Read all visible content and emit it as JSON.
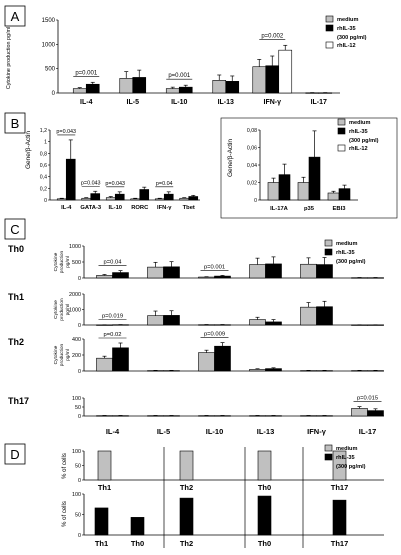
{
  "figure": {
    "panel_labels": [
      "A",
      "B",
      "C",
      "D"
    ],
    "colors": {
      "medium": "#c0c0c0",
      "il35": "#000000",
      "il12": "#ffffff"
    }
  },
  "chart_data": [
    {
      "panel": "A",
      "type": "bar",
      "ylabel": "Cytokine production pg/ml",
      "ylim": [
        0,
        1500
      ],
      "yticks": [
        0,
        500,
        1000,
        1500
      ],
      "categories": [
        "IL-4",
        "IL-5",
        "IL-10",
        "IL-13",
        "IFN-γ",
        "IL-17"
      ],
      "series": [
        {
          "name": "medium",
          "values": [
            90,
            300,
            90,
            260,
            540,
            5
          ],
          "errors": [
            20,
            140,
            30,
            110,
            150,
            3
          ]
        },
        {
          "name": "rhIL-35 (300 pg/ml)",
          "values": [
            180,
            320,
            120,
            240,
            560,
            5
          ],
          "errors": [
            40,
            150,
            40,
            110,
            200,
            3
          ]
        },
        {
          "name": "rhIL-12",
          "values": [
            null,
            null,
            null,
            null,
            880,
            null
          ],
          "errors": [
            null,
            null,
            null,
            null,
            100,
            null
          ]
        }
      ],
      "annotations": [
        {
          "text": "p=0.001",
          "category": "IL-4"
        },
        {
          "text": "p=0.001",
          "category": "IL-10"
        },
        {
          "text": "p=0.002",
          "category": "IFN-γ"
        }
      ],
      "legend": [
        "medium",
        "rhIL-35",
        "(300 pg/ml)",
        "rhIL-12"
      ]
    },
    {
      "panel": "B-left",
      "type": "bar",
      "ylabel": "Gene/β-Actin",
      "ylim": [
        0,
        1.2
      ],
      "yticks": [
        0,
        0.2,
        0.4,
        0.6,
        0.8,
        1,
        1.2
      ],
      "ytick_labels": [
        "0",
        "0,2",
        "0,4",
        "0,6",
        "0,8",
        "1",
        "1,2"
      ],
      "categories": [
        "IL-4",
        "GATA-3",
        "IL-10",
        "RORC",
        "IFN-γ",
        "Tbet"
      ],
      "series": [
        {
          "name": "medium",
          "values": [
            0.02,
            0.03,
            0.04,
            0.02,
            0.02,
            0.03
          ],
          "errors": [
            0.01,
            0.01,
            0.02,
            0.01,
            0.01,
            0.01
          ]
        },
        {
          "name": "rhIL-35",
          "values": [
            0.7,
            0.11,
            0.1,
            0.18,
            0.1,
            0.06
          ],
          "errors": [
            0.33,
            0.04,
            0.04,
            0.04,
            0.04,
            0.02
          ]
        }
      ],
      "annotations": [
        {
          "text": "p=0.043",
          "category": "IL-4"
        },
        {
          "text": "p=0.043",
          "category": "GATA-3"
        },
        {
          "text": "p=0.043",
          "category": "IL-10"
        },
        {
          "text": "p=0.04",
          "category": "IFN-γ"
        }
      ]
    },
    {
      "panel": "B-right",
      "type": "bar",
      "ylabel": "Gene/β-Actin",
      "ylim": [
        0,
        0.08
      ],
      "yticks": [
        0,
        0.02,
        0.04,
        0.06,
        0.08
      ],
      "ytick_labels": [
        "0",
        "0,02",
        "0,04",
        "0,06",
        "0,08"
      ],
      "categories": [
        "IL-17A",
        "p35",
        "EBI3"
      ],
      "series": [
        {
          "name": "medium",
          "values": [
            0.02,
            0.02,
            0.008
          ],
          "errors": [
            0.005,
            0.006,
            0.002
          ]
        },
        {
          "name": "rhIL-35",
          "values": [
            0.029,
            0.049,
            0.013
          ],
          "errors": [
            0.012,
            0.03,
            0.004
          ]
        }
      ],
      "legend": [
        "medium",
        "rhIL-35",
        "(300 pg/ml)",
        "rhIL-12"
      ]
    },
    {
      "panel": "C",
      "type": "bar",
      "categories": [
        "IL-4",
        "IL-5",
        "IL-10",
        "IL-13",
        "IFN-γ",
        "IL-17"
      ],
      "legend": [
        "medium",
        "rhIL-35",
        "(300 pg/ml)"
      ],
      "ylabel_lines": [
        "Cytokine",
        "production",
        "pg/ml"
      ],
      "rows": [
        {
          "label": "Th0",
          "ylim": [
            0,
            1000
          ],
          "yticks": [
            0,
            500,
            1000
          ],
          "medium": [
            80,
            340,
            30,
            420,
            430,
            10
          ],
          "il35": [
            170,
            350,
            60,
            440,
            420,
            10
          ],
          "medium_err": [
            30,
            150,
            10,
            200,
            200,
            5
          ],
          "il35_err": [
            60,
            160,
            20,
            220,
            220,
            5
          ],
          "annotations": [
            {
              "text": "p=0.04",
              "category": "IL-4"
            },
            {
              "text": "p=0.001",
              "category": "IL-10"
            }
          ]
        },
        {
          "label": "Th1",
          "ylim": [
            0,
            2000
          ],
          "yticks": [
            0,
            1000,
            2000
          ],
          "medium": [
            10,
            600,
            20,
            350,
            1150,
            10
          ],
          "il35": [
            20,
            620,
            20,
            200,
            1180,
            10
          ],
          "medium_err": [
            5,
            300,
            10,
            150,
            300,
            5
          ],
          "il35_err": [
            5,
            300,
            10,
            150,
            350,
            5
          ],
          "annotations": [
            {
              "text": "p=0.019",
              "category": "IL-4"
            }
          ]
        },
        {
          "label": "Th2",
          "ylim": [
            0,
            400
          ],
          "yticks": [
            0,
            200,
            400
          ],
          "medium": [
            160,
            5,
            230,
            20,
            5,
            5
          ],
          "il35": [
            290,
            5,
            310,
            30,
            5,
            5
          ],
          "medium_err": [
            25,
            3,
            30,
            8,
            3,
            3
          ],
          "il35_err": [
            60,
            3,
            45,
            10,
            3,
            3
          ],
          "annotations": [
            {
              "text": "p=0.02",
              "category": "IL-4"
            },
            {
              "text": "p=0.009",
              "category": "IL-10"
            }
          ]
        },
        {
          "label": "Th17",
          "ylim": [
            0,
            100
          ],
          "yticks": [
            0,
            50,
            100
          ],
          "medium": [
            2,
            2,
            2,
            2,
            2,
            42
          ],
          "il35": [
            2,
            2,
            2,
            2,
            2,
            30
          ],
          "medium_err": [
            1,
            1,
            1,
            1,
            1,
            10
          ],
          "il35_err": [
            1,
            1,
            1,
            1,
            1,
            10
          ],
          "annotations": [
            {
              "text": "p=0.015",
              "category": "IL-17"
            }
          ]
        }
      ]
    },
    {
      "panel": "D",
      "type": "bar",
      "ylabel": "% of cells",
      "ylim": [
        0,
        100
      ],
      "yticks": [
        0,
        50,
        100
      ],
      "legend": [
        "medium",
        "rhIL-35",
        "(300 pg/ml)"
      ],
      "top": {
        "series": "medium",
        "bars": [
          {
            "label": "Th1",
            "value": 100
          },
          {
            "label": "Th2",
            "value": 100
          },
          {
            "label": "Th0",
            "value": 100
          },
          {
            "label": "Th17",
            "value": 100
          }
        ]
      },
      "bottom": {
        "series": "rhIL-35",
        "bars": [
          {
            "label": "Th1",
            "value": 66
          },
          {
            "label": "Th0",
            "value": 43
          },
          {
            "label": "Th2",
            "value": 90
          },
          {
            "label": "Th0",
            "value": 95
          },
          {
            "label": "Th17",
            "value": 85
          }
        ]
      }
    }
  ]
}
